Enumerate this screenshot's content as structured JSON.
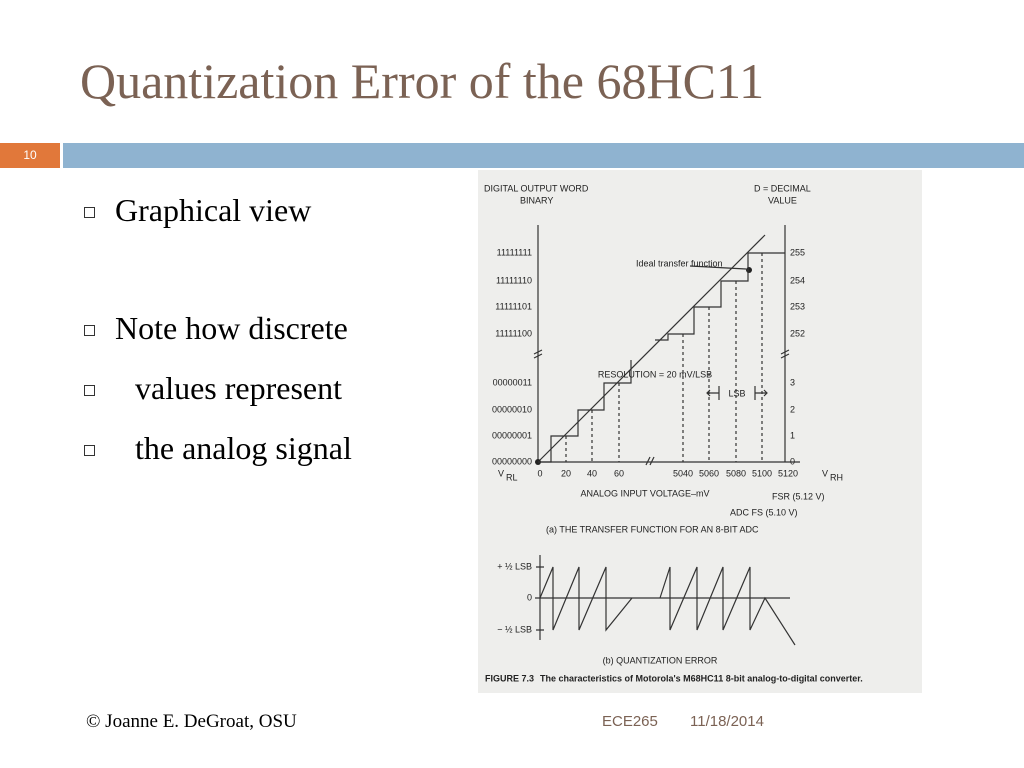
{
  "title": "Quantization Error of the 68HC11",
  "slide_number": "10",
  "bullets": [
    "Graphical view",
    "Note how discrete",
    "values represent",
    "the analog signal"
  ],
  "footer": {
    "author": "© Joanne E. DeGroat, OSU",
    "course": "ECE265",
    "date": "11/18/2014"
  },
  "figure": {
    "left_header": [
      "DIGITAL OUTPUT WORD",
      "BINARY"
    ],
    "right_header": [
      "D = DECIMAL",
      "VALUE"
    ],
    "binary_labels": [
      "11111111",
      "11111110",
      "11111101",
      "11111100",
      "00000011",
      "00000010",
      "00000001",
      "00000000"
    ],
    "decimal_labels": [
      "255",
      "254",
      "253",
      "252",
      "3",
      "2",
      "1",
      "0"
    ],
    "voltage_labels": [
      "0",
      "20",
      "40",
      "60",
      "5040",
      "5060",
      "5080",
      "5100",
      "5120"
    ],
    "v_rl": {
      "main": "V",
      "sub": "RL"
    },
    "v_rh": {
      "main": "V",
      "sub": "RH"
    },
    "ideal_label": "Ideal transfer function",
    "resolution": "RESOLUTION = 20 mV/LSB",
    "lsb": "LSB",
    "x_axis_label": "ANALOG INPUT VOLTAGE–mV",
    "fsr": "FSR (5.12 V)",
    "adc_fs": "ADC FS (5.10 V)",
    "caption_a": "(a) THE TRANSFER FUNCTION FOR AN 8-BIT ADC",
    "error_labels": [
      "+ ½ LSB",
      "0",
      "− ½ LSB"
    ],
    "caption_b": "(b) QUANTIZATION ERROR",
    "figure_number": "FIGURE 7.3",
    "figure_caption": "The characteristics of Motorola's M68HC11 8-bit analog-to-digital converter."
  }
}
